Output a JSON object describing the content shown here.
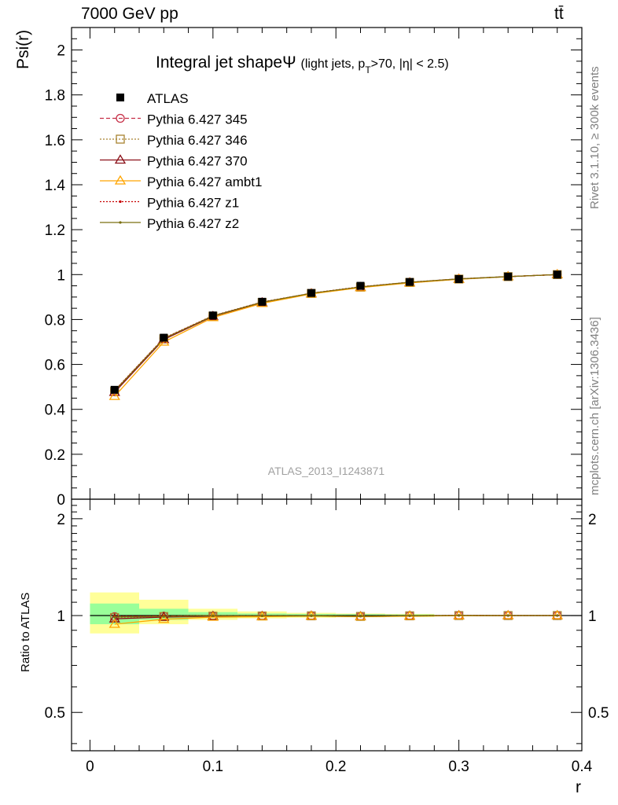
{
  "header": {
    "energy_label": "7000 GeV pp",
    "process_label": "tt̄"
  },
  "side_labels": {
    "rivet": "Rivet 3.1.10, ≥ 300k events",
    "source": "mcplots.cern.ch [arXiv:1306.3436]"
  },
  "colors": {
    "data_band_inner": "#99ff99",
    "data_band_outer": "#ffff99",
    "watermark": "#a0a0a0"
  },
  "chart_data": [
    {
      "id": "main",
      "type": "line",
      "title_main": "Integral jet shape",
      "title_symbol": "Ψ",
      "title_sub": "(light jets, p",
      "title_sub_index": "T",
      "title_sub_rest": ">70, |η| < 2.5)",
      "ylabel": "Psi(r)",
      "xlabel": "r",
      "xlim": [
        -0.015,
        0.4
      ],
      "ylim": [
        0,
        2.1
      ],
      "y_ticks": [
        0,
        0.2,
        0.4,
        0.6,
        0.8,
        1,
        1.2,
        1.4,
        1.6,
        1.8,
        2
      ],
      "y_tick_labels": [
        "0",
        "0.2",
        "0.4",
        "0.6",
        "0.8",
        "1",
        "1.2",
        "1.4",
        "1.6",
        "1.8",
        "2"
      ],
      "watermark": "ATLAS_2013_I1243871",
      "x": [
        0.02,
        0.06,
        0.1,
        0.14,
        0.18,
        0.22,
        0.26,
        0.3,
        0.34,
        0.38
      ],
      "data": {
        "name": "ATLAS",
        "values": [
          0.487,
          0.719,
          0.818,
          0.879,
          0.918,
          0.95,
          0.967,
          0.98,
          0.991,
          1.0
        ],
        "errors": [
          0.01,
          0.008,
          0.006,
          0.005,
          0.004,
          0.003,
          0.003,
          0.002,
          0.002,
          0.0
        ]
      },
      "series": [
        {
          "name": "Pythia 6.427 345",
          "color": "#c62d45",
          "dash": "5,3",
          "marker": "circle",
          "values": [
            0.483,
            0.716,
            0.816,
            0.877,
            0.917,
            0.945,
            0.966,
            0.981,
            0.991,
            1.0
          ]
        },
        {
          "name": "Pythia 6.427 346",
          "color": "#a88230",
          "dash": "2,2",
          "marker": "square",
          "values": [
            0.48,
            0.714,
            0.815,
            0.876,
            0.916,
            0.944,
            0.965,
            0.98,
            0.991,
            1.0
          ]
        },
        {
          "name": "Pythia 6.427 370",
          "color": "#8b1018",
          "dash": "",
          "marker": "triangle",
          "values": [
            0.476,
            0.711,
            0.814,
            0.875,
            0.915,
            0.943,
            0.964,
            0.98,
            0.991,
            1.0
          ]
        },
        {
          "name": "Pythia 6.427 ambt1",
          "color": "#ffa500",
          "dash": "",
          "marker": "triangle",
          "values": [
            0.458,
            0.7,
            0.809,
            0.872,
            0.914,
            0.942,
            0.963,
            0.979,
            0.991,
            1.0
          ]
        },
        {
          "name": "Pythia 6.427 z1",
          "color": "#c80000",
          "dash": "2,2",
          "marker": "dot",
          "values": [
            0.484,
            0.717,
            0.817,
            0.878,
            0.917,
            0.946,
            0.966,
            0.981,
            0.991,
            1.0
          ]
        },
        {
          "name": "Pythia 6.427 z2",
          "color": "#7a6f10",
          "dash": "",
          "marker": "dot",
          "values": [
            0.482,
            0.715,
            0.816,
            0.877,
            0.917,
            0.945,
            0.966,
            0.981,
            0.991,
            1.0
          ]
        }
      ]
    },
    {
      "id": "ratio",
      "type": "line",
      "ylabel": "Ratio to ATLAS",
      "xlabel": "r",
      "xlim": [
        -0.015,
        0.4
      ],
      "ylim": [
        0.38,
        2.3
      ],
      "y_ticks": [
        0.5,
        1,
        2
      ],
      "y_tick_labels": [
        "0.5",
        "1",
        "2"
      ],
      "x_ticks": [
        0,
        0.1,
        0.2,
        0.3,
        0.4
      ],
      "x_tick_labels": [
        "0",
        "0.1",
        "0.2",
        "0.3",
        "0.4"
      ],
      "bin_edges": [
        0.0,
        0.04,
        0.08,
        0.12,
        0.16,
        0.2,
        0.24,
        0.28,
        0.32,
        0.36,
        0.4
      ],
      "band_inner": [
        [
          0.94,
          1.09
        ],
        [
          0.97,
          1.05
        ],
        [
          0.985,
          1.025
        ],
        [
          0.99,
          1.015
        ],
        [
          0.99,
          1.012
        ],
        [
          0.992,
          1.01
        ],
        [
          0.993,
          1.008
        ],
        [
          0.997,
          1.003
        ],
        [
          0.998,
          1.002
        ],
        [
          1.0,
          1.0
        ]
      ],
      "band_outer": [
        [
          0.88,
          1.18
        ],
        [
          0.94,
          1.12
        ],
        [
          0.97,
          1.05
        ],
        [
          0.98,
          1.03
        ],
        [
          0.985,
          1.02
        ],
        [
          0.988,
          1.015
        ],
        [
          0.99,
          1.012
        ],
        [
          0.997,
          1.003
        ],
        [
          0.998,
          1.002
        ],
        [
          1.0,
          1.0
        ]
      ],
      "x": [
        0.02,
        0.06,
        0.1,
        0.14,
        0.18,
        0.22,
        0.26,
        0.3,
        0.34,
        0.38
      ],
      "series": [
        {
          "name": "Pythia 6.427 345",
          "values": [
            0.992,
            0.996,
            0.998,
            0.998,
            0.999,
            0.995,
            0.999,
            1.001,
            1.0,
            1.0
          ]
        },
        {
          "name": "Pythia 6.427 346",
          "values": [
            0.986,
            0.993,
            0.996,
            0.997,
            0.998,
            0.994,
            0.998,
            1.0,
            1.0,
            1.0
          ]
        },
        {
          "name": "Pythia 6.427 370",
          "values": [
            0.977,
            0.989,
            0.995,
            0.995,
            0.997,
            0.993,
            0.997,
            1.0,
            1.0,
            1.0
          ]
        },
        {
          "name": "Pythia 6.427 ambt1",
          "values": [
            0.94,
            0.974,
            0.989,
            0.992,
            0.996,
            0.992,
            0.996,
            0.999,
            1.0,
            1.0
          ]
        },
        {
          "name": "Pythia 6.427 z1",
          "values": [
            0.994,
            0.997,
            0.999,
            0.999,
            0.999,
            0.996,
            0.999,
            1.001,
            1.0,
            1.0
          ]
        },
        {
          "name": "Pythia 6.427 z2",
          "values": [
            0.99,
            0.994,
            0.998,
            0.998,
            0.999,
            0.995,
            0.999,
            1.001,
            1.0,
            1.0
          ]
        }
      ]
    }
  ]
}
